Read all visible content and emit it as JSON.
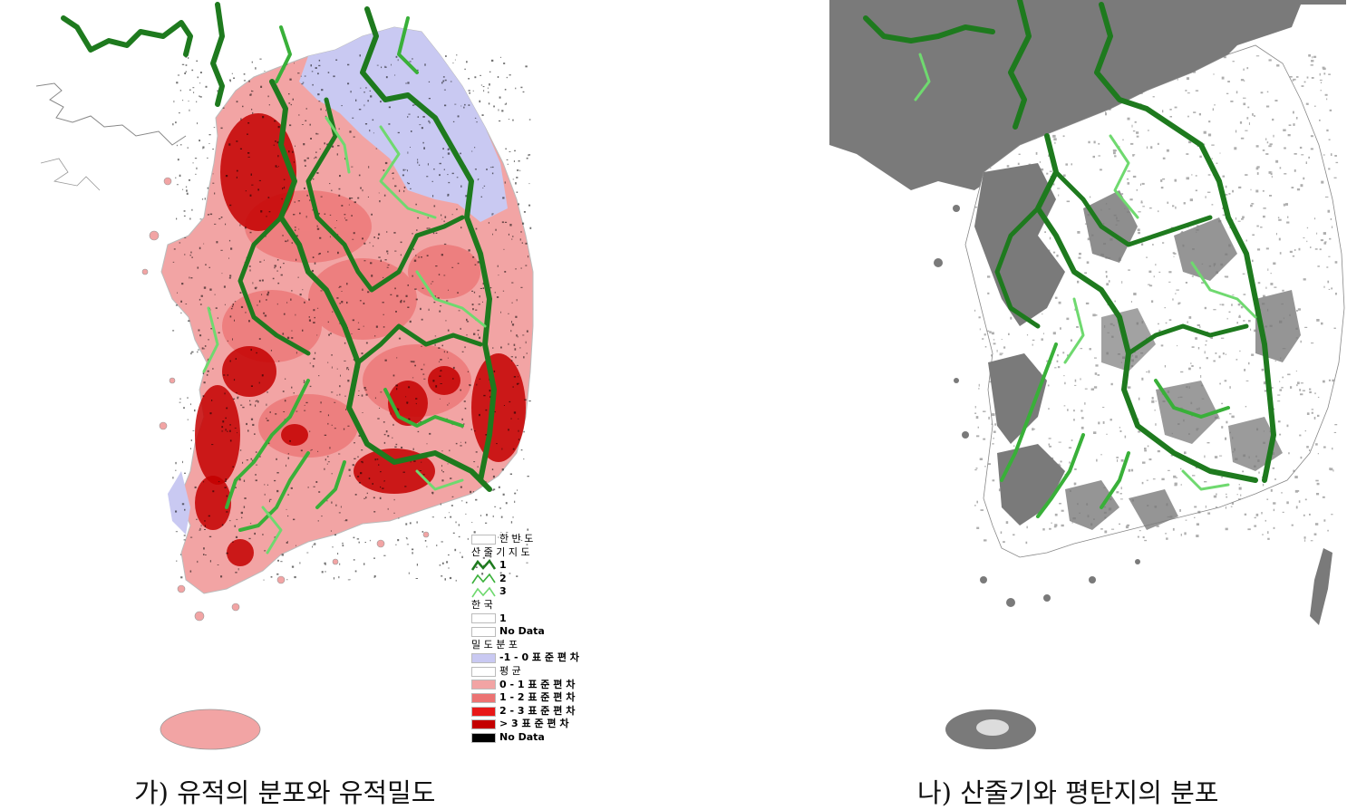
{
  "captions": {
    "left": "가) 유적의 분포와 유적밀도",
    "right": "나) 산줄기와 평탄지의 분포"
  },
  "legend": {
    "korean_peninsula": "한 반 도",
    "ridge_title": "산 줄 기 지 도",
    "ridge_levels": [
      {
        "label": "1",
        "color": "#1e7a1e"
      },
      {
        "label": "2",
        "color": "#39b039"
      },
      {
        "label": "3",
        "color": "#6fd96f"
      }
    ],
    "korea_title": "한 국",
    "korea_items": [
      {
        "label": "1",
        "color": "#ffffff"
      },
      {
        "label": "No Data",
        "color": "#ffffff"
      }
    ],
    "density_title": "밀 도 분 포",
    "density_items": [
      {
        "label": "-1 - 0 표 준 편 차",
        "color": "#c9c9f2"
      },
      {
        "label": "평 균",
        "color": "#ffffff"
      },
      {
        "label": "0 - 1  표 준 편 차",
        "color": "#f2a4a4"
      },
      {
        "label": "1 - 2  표 준 편 차",
        "color": "#ec7373"
      },
      {
        "label": "2 - 3  표 준 편 차",
        "color": "#e81818"
      },
      {
        "label": "> 3 표 준 편 차",
        "color": "#c40000"
      },
      {
        "label": "No Data",
        "color": "#000000"
      }
    ]
  },
  "colors": {
    "ridge_major": "#1e7a1e",
    "ridge_mid": "#39b039",
    "ridge_minor": "#6fd96f",
    "density_low": "#c9c9f2",
    "density_base": "#f2a4a4",
    "density_mid": "#ec7373",
    "density_high": "#c40000",
    "flat_land": "#7a7a7a",
    "mountain": "#ffffff"
  }
}
